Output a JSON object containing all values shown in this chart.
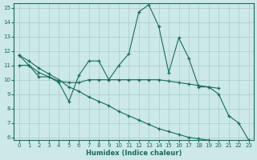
{
  "x": [
    0,
    1,
    2,
    3,
    4,
    5,
    6,
    7,
    8,
    9,
    10,
    11,
    12,
    13,
    14,
    15,
    16,
    17,
    18,
    19,
    20,
    21,
    22,
    23
  ],
  "series1": [
    11.7,
    11.0,
    10.2,
    10.2,
    9.8,
    8.5,
    10.3,
    11.3,
    11.3,
    10.0,
    11.0,
    11.8,
    14.7,
    15.2,
    13.7,
    10.5,
    12.9,
    11.5,
    9.5,
    9.5,
    9.0,
    7.5,
    7.0,
    5.8
  ],
  "series2": [
    11.0,
    11.0,
    10.5,
    10.2,
    9.9,
    9.8,
    9.8,
    10.0,
    10.0,
    10.0,
    10.0,
    10.0,
    10.0,
    10.0,
    10.0,
    9.9,
    9.8,
    9.7,
    9.6,
    9.5,
    9.4
  ],
  "series2_x": [
    0,
    1,
    2,
    3,
    4,
    5,
    6,
    7,
    8,
    9,
    10,
    11,
    12,
    13,
    14,
    15,
    16,
    17,
    18,
    19,
    20
  ],
  "series3": [
    11.7,
    11.3,
    10.8,
    10.4,
    10.0,
    9.5,
    9.2,
    8.8,
    8.5,
    8.2,
    7.8,
    7.5,
    7.2,
    6.9,
    6.6,
    6.4,
    6.2,
    6.0,
    5.9,
    5.8,
    5.7,
    5.6,
    5.5,
    5.8
  ],
  "series3_x": [
    0,
    1,
    2,
    3,
    4,
    5,
    6,
    7,
    8,
    9,
    10,
    11,
    12,
    13,
    14,
    15,
    16,
    17,
    18,
    19,
    20,
    21,
    22,
    23
  ],
  "xlim": [
    -0.5,
    23.5
  ],
  "ylim": [
    5.8,
    15.3
  ],
  "yticks": [
    6,
    7,
    8,
    9,
    10,
    11,
    12,
    13,
    14,
    15
  ],
  "xticks": [
    0,
    1,
    2,
    3,
    4,
    5,
    6,
    7,
    8,
    9,
    10,
    11,
    12,
    13,
    14,
    15,
    16,
    17,
    18,
    19,
    20,
    21,
    22,
    23
  ],
  "xlabel": "Humidex (Indice chaleur)",
  "line_color": "#1a6b5a",
  "bg_color": "#cce8e8",
  "grid_color": "#aacccc"
}
